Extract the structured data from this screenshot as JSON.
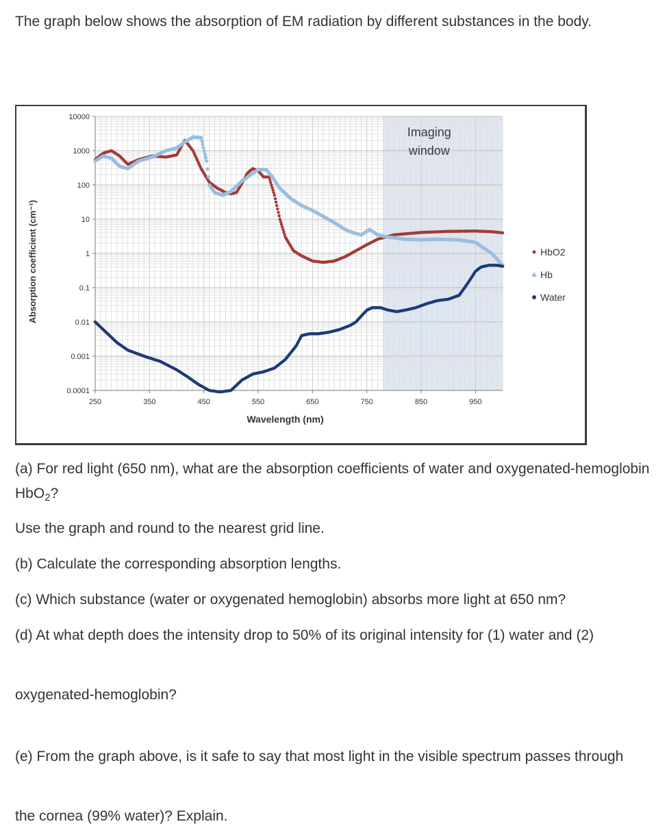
{
  "intro": "The graph below shows the absorption of EM radiation by different substances in the body.",
  "chart_data": {
    "type": "scatter",
    "xlabel": "Wavelength (nm)",
    "ylabel": "Absorption coefficient (cm⁻¹)",
    "xlim": [
      250,
      1000
    ],
    "ylim": [
      0.0001,
      10000
    ],
    "yscale": "log",
    "x_ticks": [
      "250",
      "350",
      "450",
      "550",
      "650",
      "750",
      "850",
      "950"
    ],
    "y_ticks": [
      "10000",
      "1000",
      "100",
      "10",
      "1",
      "0.1",
      "0.01",
      "0.001",
      "0.0001"
    ],
    "grid": true,
    "legend": "right",
    "annotation": {
      "text": [
        "Imaging",
        "window"
      ],
      "x_range": [
        780,
        1000
      ]
    },
    "series": [
      {
        "name": "HbO2",
        "color": "#a33c36",
        "points": [
          [
            250,
            550
          ],
          [
            265,
            850
          ],
          [
            280,
            1000
          ],
          [
            295,
            700
          ],
          [
            310,
            400
          ],
          [
            330,
            550
          ],
          [
            355,
            700
          ],
          [
            380,
            650
          ],
          [
            400,
            750
          ],
          [
            415,
            2000
          ],
          [
            430,
            1000
          ],
          [
            445,
            300
          ],
          [
            460,
            120
          ],
          [
            475,
            80
          ],
          [
            490,
            60
          ],
          [
            500,
            55
          ],
          [
            510,
            60
          ],
          [
            520,
            110
          ],
          [
            530,
            220
          ],
          [
            540,
            300
          ],
          [
            550,
            260
          ],
          [
            560,
            170
          ],
          [
            570,
            170
          ],
          [
            580,
            50
          ],
          [
            590,
            10
          ],
          [
            600,
            3
          ],
          [
            615,
            1.2
          ],
          [
            630,
            0.85
          ],
          [
            650,
            0.6
          ],
          [
            670,
            0.55
          ],
          [
            690,
            0.6
          ],
          [
            710,
            0.8
          ],
          [
            730,
            1.2
          ],
          [
            750,
            1.8
          ],
          [
            770,
            2.6
          ],
          [
            800,
            3.5
          ],
          [
            850,
            4.1
          ],
          [
            900,
            4.4
          ],
          [
            950,
            4.5
          ],
          [
            980,
            4.3
          ],
          [
            1000,
            4
          ]
        ]
      },
      {
        "name": "Hb",
        "color": "#9bbee0",
        "points": [
          [
            250,
            500
          ],
          [
            265,
            700
          ],
          [
            280,
            600
          ],
          [
            295,
            350
          ],
          [
            310,
            300
          ],
          [
            330,
            500
          ],
          [
            355,
            650
          ],
          [
            380,
            1000
          ],
          [
            400,
            1200
          ],
          [
            415,
            1800
          ],
          [
            430,
            2500
          ],
          [
            445,
            2400
          ],
          [
            455,
            500
          ],
          [
            460,
            100
          ],
          [
            470,
            60
          ],
          [
            485,
            50
          ],
          [
            500,
            65
          ],
          [
            520,
            130
          ],
          [
            535,
            190
          ],
          [
            550,
            280
          ],
          [
            565,
            280
          ],
          [
            575,
            180
          ],
          [
            590,
            80
          ],
          [
            610,
            40
          ],
          [
            630,
            25
          ],
          [
            650,
            18
          ],
          [
            670,
            12
          ],
          [
            690,
            8
          ],
          [
            710,
            5
          ],
          [
            725,
            4
          ],
          [
            740,
            3.5
          ],
          [
            755,
            5
          ],
          [
            770,
            3.5
          ],
          [
            790,
            3
          ],
          [
            820,
            2.6
          ],
          [
            850,
            2.5
          ],
          [
            880,
            2.6
          ],
          [
            920,
            2.5
          ],
          [
            950,
            2.1
          ],
          [
            980,
            1
          ],
          [
            1000,
            0.45
          ]
        ]
      },
      {
        "name": "Water",
        "color": "#1f3a78",
        "points": [
          [
            250,
            0.01
          ],
          [
            270,
            0.005
          ],
          [
            290,
            0.0025
          ],
          [
            310,
            0.0015
          ],
          [
            340,
            0.001
          ],
          [
            370,
            0.0007
          ],
          [
            400,
            0.0004
          ],
          [
            420,
            0.00025
          ],
          [
            440,
            0.00015
          ],
          [
            460,
            0.0001
          ],
          [
            480,
            9e-05
          ],
          [
            500,
            0.0001
          ],
          [
            520,
            0.0002
          ],
          [
            540,
            0.0003
          ],
          [
            560,
            0.00035
          ],
          [
            580,
            0.00045
          ],
          [
            600,
            0.0008
          ],
          [
            620,
            0.002
          ],
          [
            630,
            0.004
          ],
          [
            645,
            0.0045
          ],
          [
            660,
            0.0045
          ],
          [
            680,
            0.005
          ],
          [
            700,
            0.006
          ],
          [
            720,
            0.008
          ],
          [
            730,
            0.01
          ],
          [
            740,
            0.015
          ],
          [
            750,
            0.022
          ],
          [
            760,
            0.026
          ],
          [
            775,
            0.026
          ],
          [
            790,
            0.022
          ],
          [
            805,
            0.02
          ],
          [
            820,
            0.022
          ],
          [
            840,
            0.026
          ],
          [
            860,
            0.034
          ],
          [
            880,
            0.042
          ],
          [
            900,
            0.046
          ],
          [
            920,
            0.06
          ],
          [
            930,
            0.1
          ],
          [
            940,
            0.17
          ],
          [
            950,
            0.3
          ],
          [
            960,
            0.4
          ],
          [
            975,
            0.45
          ],
          [
            990,
            0.45
          ],
          [
            1000,
            0.42
          ]
        ]
      }
    ]
  },
  "qa_label": "(a) For red light (650 nm), what are the absorption coefficients of water and oxygenated-hemoglobin HbO",
  "qa_sub": "2",
  "qa_tail": "?",
  "q_round": "Use the graph and round to the nearest grid line.",
  "q_b": "(b) Calculate the corresponding absorption lengths.",
  "q_c": "(c) Which substance (water or oxygenated hemoglobin) absorbs more light at 650 nm?",
  "q_d": "(d) At what depth does the intensity drop to 50% of its original intensity for (1) water and (2)",
  "q_d2": "oxygenated-hemoglobin?",
  "q_e": "(e) From the graph above, is it safe to say that most light in the visible spectrum passes through",
  "q_e2": "the cornea (99% water)? Explain."
}
